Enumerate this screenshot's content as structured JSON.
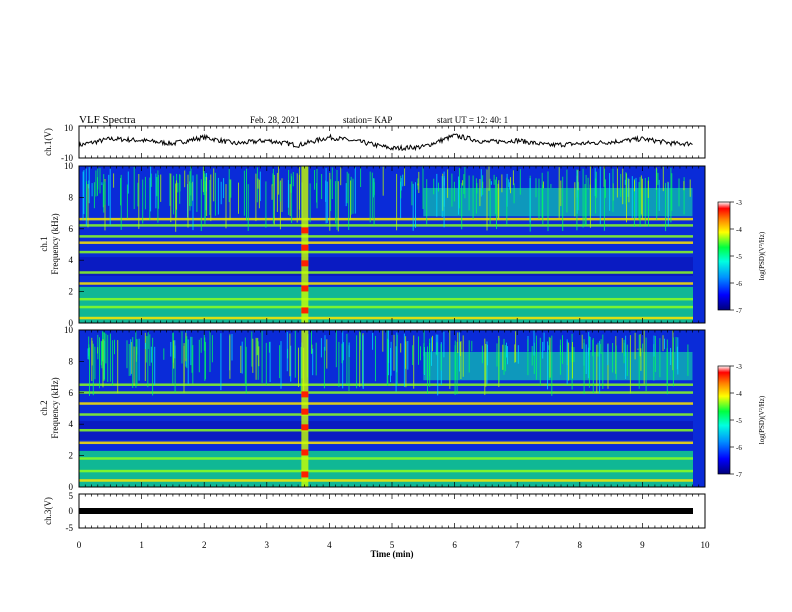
{
  "header": {
    "title": "VLF Spectra",
    "date": "Feb. 28, 2021",
    "station": "station= KAP",
    "start": "start  UT =  12: 40: 1"
  },
  "colorbar": {
    "label": "log(PSD)(V²/Hz)",
    "ticks": [
      "-3",
      "-4",
      "-5",
      "-6",
      "-7"
    ],
    "range": [
      -7,
      -3
    ],
    "colors": [
      "#00007a",
      "#0000ff",
      "#0090ff",
      "#00ffe0",
      "#00ff40",
      "#ffff00",
      "#ff8000",
      "#ff0000",
      "#ffffff"
    ]
  },
  "chart_data": [
    {
      "type": "line",
      "ylabel": "ch.1(V)",
      "ylim": [
        -10,
        10
      ],
      "yticks": [
        "10",
        "-10"
      ],
      "xlim": [
        0,
        10
      ],
      "description_values": {
        "x": [
          0.0,
          0.5,
          1.0,
          1.5,
          2.0,
          2.5,
          3.0,
          3.5,
          4.0,
          4.5,
          5.0,
          5.5,
          6.0,
          6.5,
          7.0,
          7.5,
          8.0,
          8.5,
          9.0,
          9.5,
          9.8
        ],
        "y": [
          -2,
          2,
          1,
          -1,
          3,
          -1,
          1,
          -2,
          3,
          0,
          -4,
          -3,
          4,
          0,
          1,
          -2,
          -1,
          0,
          2,
          -1,
          -1
        ]
      }
    },
    {
      "type": "heatmap",
      "ylabel": "ch.1\nFrequency (kHz)",
      "ylim": [
        0,
        10
      ],
      "yticks": [
        "0",
        "2",
        "4",
        "6",
        "8",
        "10"
      ],
      "xlim": [
        0,
        10
      ],
      "zlim": [
        -7,
        -3
      ],
      "bands_khz": [
        0.3,
        1.0,
        1.5,
        2.5,
        3.2,
        4.5,
        5.1,
        5.5,
        6.2,
        6.6
      ],
      "burst_time_min": 3.6
    },
    {
      "type": "heatmap",
      "ylabel": "ch.2\nFrequency (kHz)",
      "ylim": [
        0,
        10
      ],
      "yticks": [
        "0",
        "2",
        "4",
        "6",
        "8",
        "10"
      ],
      "xlim": [
        0,
        10
      ],
      "zlim": [
        -7,
        -3
      ],
      "bands_khz": [
        0.4,
        1.0,
        1.8,
        2.8,
        3.6,
        4.6,
        5.3,
        6.0,
        6.5
      ],
      "burst_time_min": 3.6
    },
    {
      "type": "line",
      "ylabel": "ch.3(V)",
      "ylim": [
        -5,
        5
      ],
      "yticks": [
        "5",
        "0",
        "-5"
      ],
      "xlim": [
        0,
        10
      ],
      "xlabel": "Time  (min)",
      "xticks": [
        "0",
        "1",
        "2",
        "3",
        "4",
        "5",
        "6",
        "7",
        "8",
        "9",
        "10"
      ],
      "description_values": {
        "x": [
          0,
          9.8
        ],
        "y": [
          0,
          0
        ]
      }
    }
  ]
}
